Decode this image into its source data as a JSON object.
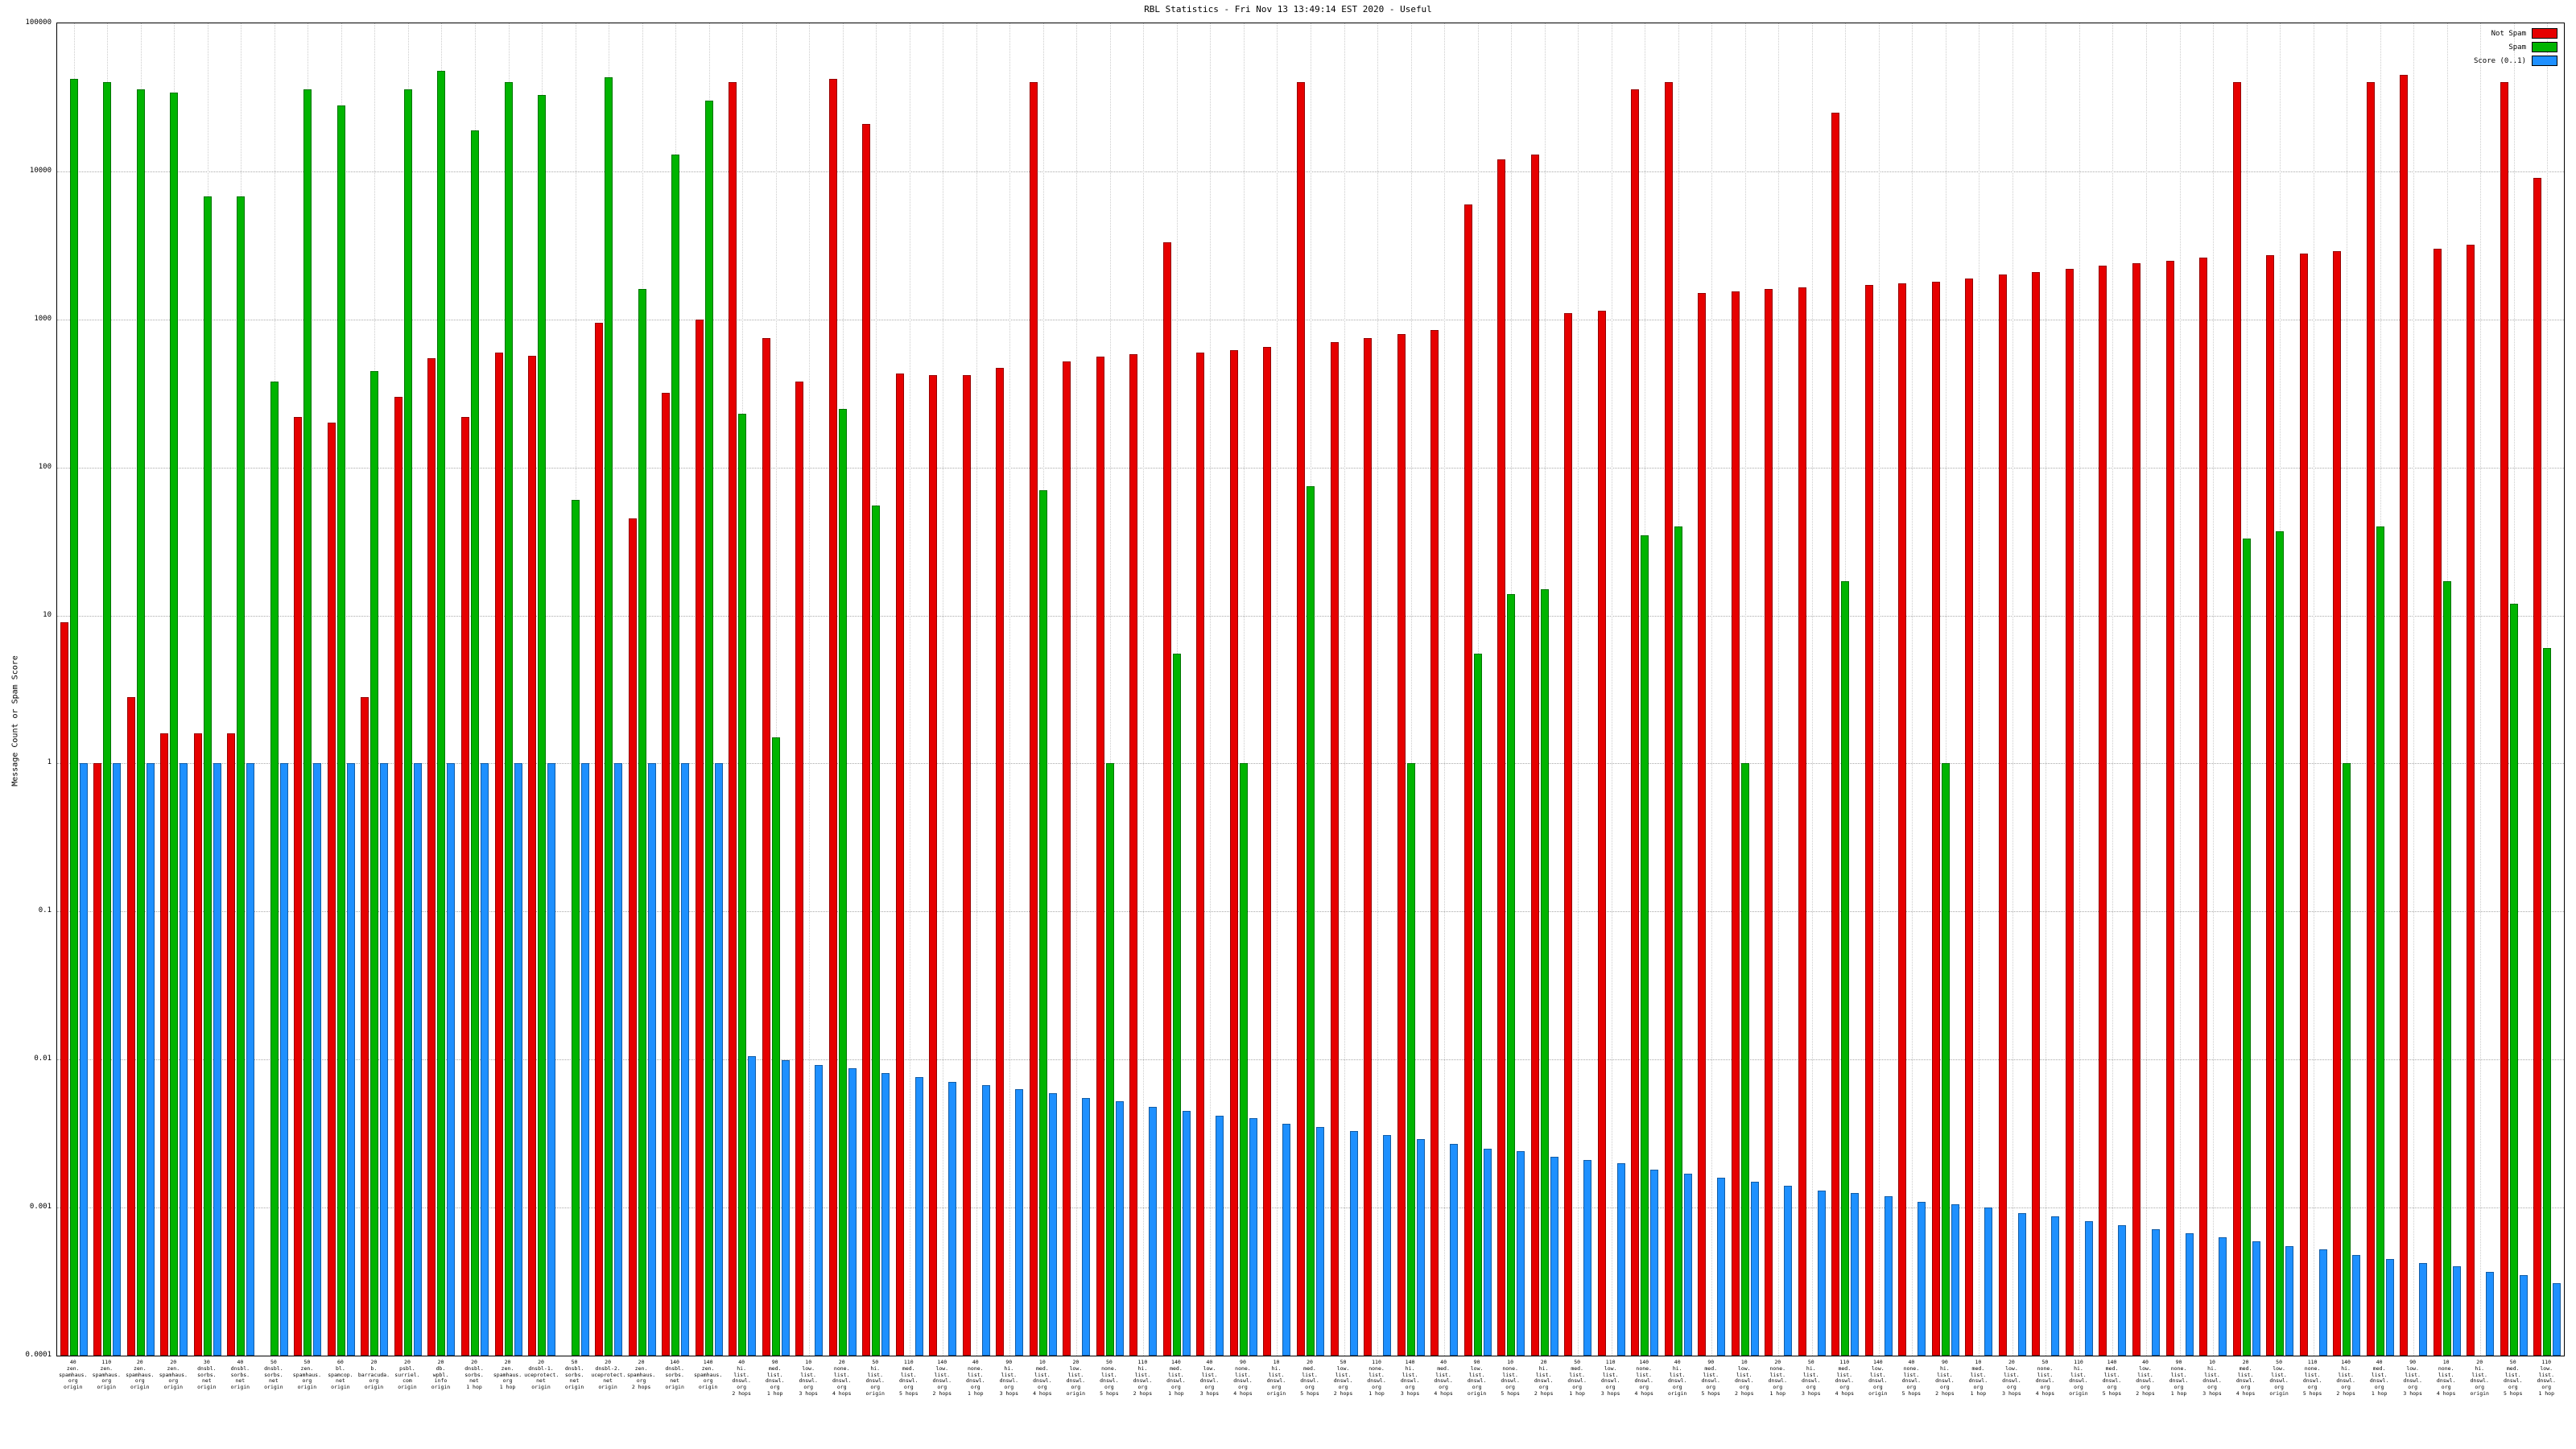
{
  "chart_data": {
    "type": "bar",
    "title": "RBL Statistics - Fri Nov 13 13:49:14 EST 2020 - Useful",
    "ylabel": "Message Count or Spam Score",
    "y_scale": "log",
    "ylim": [
      0.0001,
      100000
    ],
    "ytick_labels": [
      "0.0001",
      "0.001",
      "0.01",
      "0.1",
      "1",
      "10",
      "100",
      "1000",
      "10000",
      "100000"
    ],
    "grid": true,
    "legend_position": "top-right",
    "background": "#ffffff",
    "categories": [
      "40|zen.|spamhaus.|org|origin",
      "110|zen.|spamhaus.|org|origin",
      "20|zen.|spamhaus.|org|origin",
      "20|zen.|spamhaus.|org|origin",
      "30|dnsbl.|sorbs.|net|origin",
      "40|dnsbl.|sorbs.|net|origin",
      "50|dnsbl.|sorbs.|net|origin",
      "50|zen.|spamhaus.|org|origin",
      "60|bl.|spamcop.|net|origin",
      "20|b.|barracuda.|org|origin",
      "20|psbl.|surriel.|com|origin",
      "20|db.|wpbl.|info|origin",
      "20|dnsbl.|sorbs.|net|1 hop",
      "20|zen.|spamhaus.|org|1 hop",
      "20|dnsbl-1.|uceprotect.|net|origin",
      "50|dnsbl.|sorbs.|net|origin",
      "20|dnsbl-2.|uceprotect.|net|origin",
      "20|zen.|spamhaus.|org|2 hops",
      "140|dnsbl.|sorbs.|net|origin",
      "140|zen.|spamhaus.|org|origin",
      "40|hi.|list.|dnswl.|org|2 hops",
      "90|med.|list.|dnswl.|org|1 hop",
      "10|low.|list.|dnswl.|org|3 hops",
      "20|none.|list.|dnswl.|org|4 hops",
      "50|hi.|list.|dnswl.|org|origin",
      "110|med.|list.|dnswl.|org|5 hops",
      "140|low.|list.|dnswl.|org|2 hops",
      "40|none.|list.|dnswl.|org|1 hop",
      "90|hi.|list.|dnswl.|org|3 hops",
      "10|med.|list.|dnswl.|org|4 hops",
      "20|low.|list.|dnswl.|org|origin",
      "50|none.|list.|dnswl.|org|5 hops",
      "110|hi.|list.|dnswl.|org|2 hops",
      "140|med.|list.|dnswl.|org|1 hop",
      "40|low.|list.|dnswl.|org|3 hops",
      "90|none.|list.|dnswl.|org|4 hops",
      "10|hi.|list.|dnswl.|org|origin",
      "20|med.|list.|dnswl.|org|5 hops",
      "50|low.|list.|dnswl.|org|2 hops",
      "110|none.|list.|dnswl.|org|1 hop",
      "140|hi.|list.|dnswl.|org|3 hops",
      "40|med.|list.|dnswl.|org|4 hops",
      "90|low.|list.|dnswl.|org|origin",
      "10|none.|list.|dnswl.|org|5 hops",
      "20|hi.|list.|dnswl.|org|2 hops",
      "50|med.|list.|dnswl.|org|1 hop",
      "110|low.|list.|dnswl.|org|3 hops",
      "140|none.|list.|dnswl.|org|4 hops",
      "40|hi.|list.|dnswl.|org|origin",
      "90|med.|list.|dnswl.|org|5 hops",
      "10|low.|list.|dnswl.|org|2 hops",
      "20|none.|list.|dnswl.|org|1 hop",
      "50|hi.|list.|dnswl.|org|3 hops",
      "110|med.|list.|dnswl.|org|4 hops",
      "140|low.|list.|dnswl.|org|origin",
      "40|none.|list.|dnswl.|org|5 hops",
      "90|hi.|list.|dnswl.|org|2 hops",
      "10|med.|list.|dnswl.|org|1 hop",
      "20|low.|list.|dnswl.|org|3 hops",
      "50|none.|list.|dnswl.|org|4 hops",
      "110|hi.|list.|dnswl.|org|origin",
      "140|med.|list.|dnswl.|org|5 hops",
      "40|low.|list.|dnswl.|org|2 hops",
      "90|none.|list.|dnswl.|org|1 hop",
      "10|hi.|list.|dnswl.|org|3 hops",
      "20|med.|list.|dnswl.|org|4 hops",
      "50|low.|list.|dnswl.|org|origin",
      "110|none.|list.|dnswl.|org|5 hops",
      "140|hi.|list.|dnswl.|org|2 hops",
      "40|med.|list.|dnswl.|org|1 hop",
      "90|low.|list.|dnswl.|org|3 hops",
      "10|none.|list.|dnswl.|org|4 hops",
      "20|hi.|list.|dnswl.|org|origin",
      "50|med.|list.|dnswl.|org|5 hops",
      "110|low.|list.|dnswl.|org|1 hop"
    ],
    "series": [
      {
        "id": "not-spam",
        "name": "Not Spam",
        "color": "#e60000",
        "values": [
          9,
          1,
          2.8,
          1.6,
          1.6,
          1.6,
          0,
          220,
          200,
          2.8,
          300,
          550,
          220,
          600,
          570,
          0,
          950,
          45,
          320,
          1000,
          40000,
          750,
          380,
          42000,
          21000,
          430,
          420,
          420,
          470,
          40000,
          520,
          560,
          580,
          3300,
          600,
          620,
          650,
          40000,
          700,
          750,
          800,
          850,
          6000,
          12000,
          13000,
          1100,
          1150,
          36000,
          40000,
          1500,
          1550,
          1600,
          1650,
          25000,
          1700,
          1750,
          1800,
          1900,
          2000,
          2100,
          2200,
          2300,
          2400,
          2500,
          2600,
          40000,
          2700,
          2800,
          2900,
          40000,
          45000,
          3000,
          3200,
          40000,
          9000
        ]
      },
      {
        "id": "spam",
        "name": "Spam",
        "color": "#00b400",
        "values": [
          42000,
          40000,
          36000,
          34000,
          6800,
          6800,
          380,
          36000,
          28000,
          450,
          36000,
          48000,
          19000,
          40000,
          33000,
          60,
          43000,
          1600,
          13000,
          30000,
          230,
          1.5,
          0,
          250,
          55,
          0,
          0,
          0,
          0,
          70,
          0,
          1,
          0,
          5.5,
          0,
          1,
          0,
          75,
          0,
          0,
          1,
          0,
          5.5,
          14,
          15,
          0,
          0,
          35,
          40,
          0,
          1,
          0,
          0,
          17,
          0,
          0,
          1,
          0,
          0,
          0,
          0,
          0,
          0,
          0,
          0,
          33,
          37,
          0,
          1,
          40,
          0,
          17,
          0,
          12,
          6
        ]
      },
      {
        "id": "score",
        "name": "Score (0..1)",
        "color": "#1e90ff",
        "values": [
          1,
          1,
          1,
          1,
          1,
          1,
          1,
          1,
          1,
          1,
          1,
          1,
          1,
          1,
          1,
          1,
          1,
          1,
          1,
          1,
          0.0105,
          0.0099,
          0.0092,
          0.0087,
          0.0081,
          0.0076,
          0.0071,
          0.0067,
          0.0063,
          0.0059,
          0.0055,
          0.0052,
          0.0048,
          0.0045,
          0.0042,
          0.004,
          0.0037,
          0.0035,
          0.0033,
          0.0031,
          0.0029,
          0.0027,
          0.0025,
          0.0024,
          0.0022,
          0.0021,
          0.002,
          0.0018,
          0.0017,
          0.0016,
          0.0015,
          0.0014,
          0.0013,
          0.00125,
          0.0012,
          0.0011,
          0.00105,
          0.001,
          0.00092,
          0.00087,
          0.00081,
          0.00076,
          0.00071,
          0.00067,
          0.00063,
          0.00059,
          0.00055,
          0.00052,
          0.00048,
          0.00045,
          0.00042,
          0.0004,
          0.00037,
          0.00035,
          0.00031
        ]
      }
    ]
  }
}
